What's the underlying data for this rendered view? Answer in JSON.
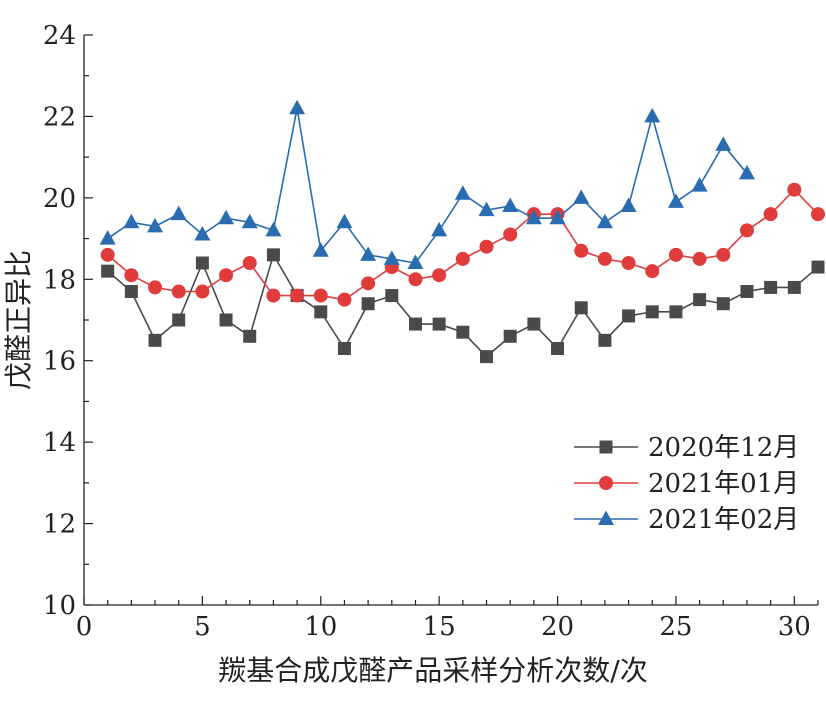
{
  "chart_data": {
    "type": "line",
    "xlabel": "羰基合成戊醛产品采样分析次数/次",
    "ylabel": "戊醛正异比",
    "xlim": [
      0,
      31
    ],
    "ylim": [
      10,
      24
    ],
    "xticks": [
      0,
      5,
      10,
      15,
      20,
      25,
      30
    ],
    "yticks": [
      10,
      12,
      14,
      16,
      18,
      20,
      22,
      24
    ],
    "grid": false,
    "legend_position": "bottom-right",
    "series": [
      {
        "name": "2020年12月",
        "color": "#4a4a4a",
        "marker": "square",
        "x": [
          1,
          2,
          3,
          4,
          5,
          6,
          7,
          8,
          9,
          10,
          11,
          12,
          13,
          14,
          15,
          16,
          17,
          18,
          19,
          20,
          21,
          22,
          23,
          24,
          25,
          26,
          27,
          28,
          29,
          30,
          31
        ],
        "y": [
          18.2,
          17.7,
          16.5,
          17.0,
          18.4,
          17.0,
          16.6,
          18.6,
          17.6,
          17.2,
          16.3,
          17.4,
          17.6,
          16.9,
          16.9,
          16.7,
          16.1,
          16.6,
          16.9,
          16.3,
          17.3,
          16.5,
          17.1,
          17.2,
          17.2,
          17.5,
          17.4,
          17.7,
          17.8,
          17.8,
          18.3
        ]
      },
      {
        "name": "2021年01月",
        "color": "#e03c3c",
        "marker": "circle",
        "x": [
          1,
          2,
          3,
          4,
          5,
          6,
          7,
          8,
          9,
          10,
          11,
          12,
          13,
          14,
          15,
          16,
          17,
          18,
          19,
          20,
          21,
          22,
          23,
          24,
          25,
          26,
          27,
          28,
          29,
          30,
          31
        ],
        "y": [
          18.6,
          18.1,
          17.8,
          17.7,
          17.7,
          18.1,
          18.4,
          17.6,
          17.6,
          17.6,
          17.5,
          17.9,
          18.3,
          18.0,
          18.1,
          18.5,
          18.8,
          19.1,
          19.6,
          19.6,
          18.7,
          18.5,
          18.4,
          18.2,
          18.6,
          18.5,
          18.6,
          19.2,
          19.6,
          20.2,
          19.6
        ]
      },
      {
        "name": "2021年02月",
        "color": "#2b6cb0",
        "marker": "triangle",
        "x": [
          1,
          2,
          3,
          4,
          5,
          6,
          7,
          8,
          9,
          10,
          11,
          12,
          13,
          14,
          15,
          16,
          17,
          18,
          19,
          20,
          21,
          22,
          23,
          24,
          25,
          26,
          27,
          28
        ],
        "y": [
          19.0,
          19.4,
          19.3,
          19.6,
          19.1,
          19.5,
          19.4,
          19.2,
          22.2,
          18.7,
          19.4,
          18.6,
          18.5,
          18.4,
          19.2,
          20.1,
          19.7,
          19.8,
          19.5,
          19.5,
          20.0,
          19.4,
          19.8,
          22.0,
          19.9,
          20.3,
          21.3,
          20.6
        ]
      }
    ]
  }
}
